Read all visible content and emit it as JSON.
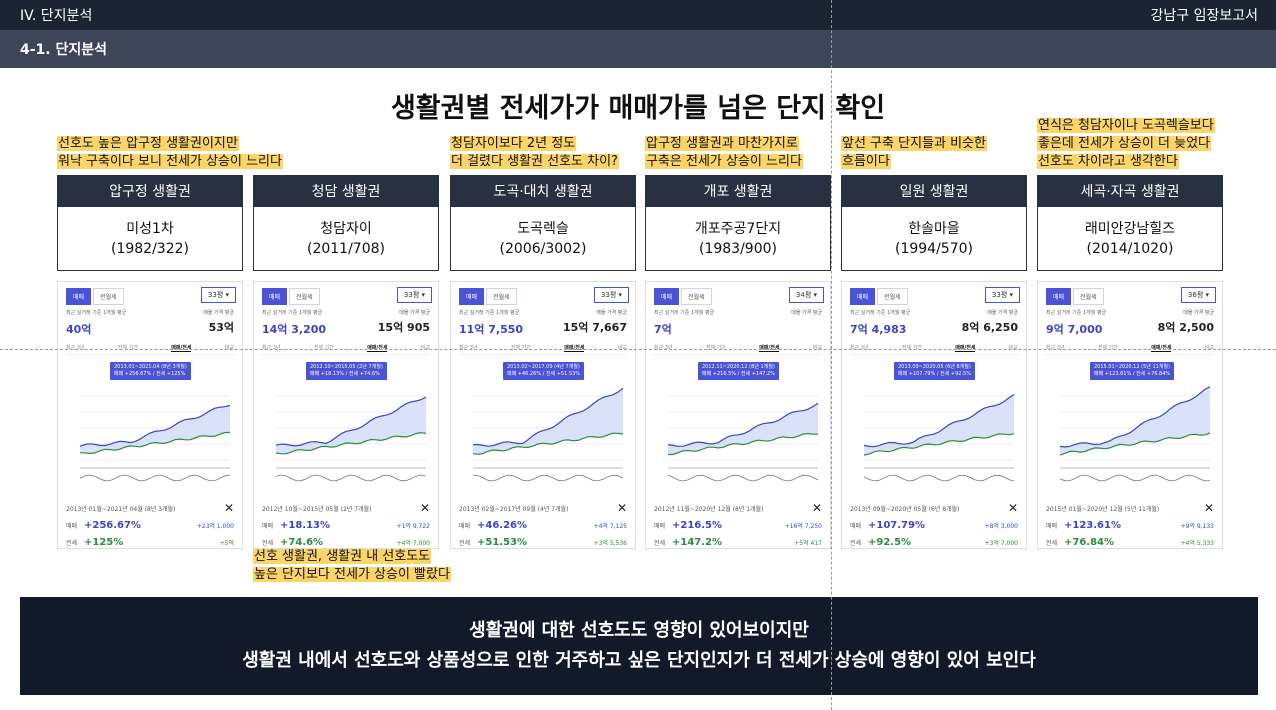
{
  "header": {
    "section": "IV. 단지분석",
    "report": "강남구 임장보고서",
    "subsection": "4-1. 단지분석"
  },
  "title": "생활권별 전세가가 매매가를 넘은 단지 확인",
  "notes": {
    "apgujeong": [
      "선호도 높은 압구정 생활권이지만",
      "워낙 구축이다 보니 전세가 상승이 느리다"
    ],
    "cheongdam": [
      "청담자이보다 2년 정도",
      "더 걸렸다 생활권 선호도 차이?"
    ],
    "gaepo": [
      "압구정 생활권과 마찬가지로",
      "구축은 전세가 상승이 느리다"
    ],
    "irwon": [
      "앞선 구축 단지들과 비슷한",
      "흐름이다"
    ],
    "segok": [
      "연식은 청담자이나 도곡렉슬보다",
      "좋은데 전세가 상승이 더 늦었다",
      "선호도 차이라고 생각한다"
    ],
    "below": [
      "선호 생활권, 생활권 내 선호도도",
      "높은 단지보다 전세가 상승이 빨랐다"
    ]
  },
  "card_labels": {
    "tab_sale": "매매",
    "tab_jeonse": "전월세",
    "recent_avg": "최근 실거래 기준 1개월 평균",
    "ask_avg": "매물 가격 평균",
    "sub1": "최근 3년",
    "sub2": "전체 기간",
    "sub3": "매매/전세",
    "sub4": "비교",
    "row_sale": "매매",
    "row_jeonse": "전세"
  },
  "complexes": [
    {
      "area": "압구정 생활권",
      "name": "미성1차",
      "year": "(1982/322)",
      "size": "33평 ▾",
      "jeonse": "40억",
      "maemae": "53억",
      "tip1": "2013.01~2021.04 (8년 3개월)",
      "tip2": "매매 +256.67% / 전세 +125%",
      "period": "2013년 01월~2021년 04월 (8년 3개월)",
      "sale_pct": "+256.67%",
      "sale_diff": "+23억 1,000",
      "jeonse_pct": "+125%",
      "jeonse_diff": "+5억"
    },
    {
      "area": "청담 생활권",
      "name": "청담자이",
      "year": "(2011/708)",
      "size": "33평 ▾",
      "jeonse": "14억 3,200",
      "maemae": "15억 905",
      "tip1": "2012.10~2015.05 (2년 7개월)",
      "tip2": "매매 +18.13% / 전세 +74.6%",
      "period": "2012년 10월~2015년 05월 (2년 7개월)",
      "sale_pct": "+18.13%",
      "sale_diff": "+1억 9,722",
      "jeonse_pct": "+74.6%",
      "jeonse_diff": "+4억 7,000"
    },
    {
      "area": "도곡·대치 생활권",
      "name": "도곡렉슬",
      "year": "(2006/3002)",
      "size": "33평 ▾",
      "jeonse": "11억 7,550",
      "maemae": "15억 7,667",
      "tip1": "2013.02~2017.09 (4년 7개월)",
      "tip2": "매매 +46.26% / 전세 +51.53%",
      "period": "2013년 02월~2017년 09월 (4년 7개월)",
      "sale_pct": "+46.26%",
      "sale_diff": "+4억 7,125",
      "jeonse_pct": "+51.53%",
      "jeonse_diff": "+3억 5,536"
    },
    {
      "area": "개포 생활권",
      "name": "개포주공7단지",
      "year": "(1983/900)",
      "size": "34평 ▾",
      "jeonse": "7억",
      "maemae": "",
      "tip1": "2012.11~2020.12 (8년 1개월)",
      "tip2": "매매 +216.5% / 전세 +147.2%",
      "period": "2012년 11월~2020년 12월 (8년 1개월)",
      "sale_pct": "+216.5%",
      "sale_diff": "+16억 7,250",
      "jeonse_pct": "+147.2%",
      "jeonse_diff": "+5억 417"
    },
    {
      "area": "일원 생활권",
      "name": "한솔마을",
      "year": "(1994/570)",
      "size": "33평 ▾",
      "jeonse": "7억 4,983",
      "maemae": "8억 6,250",
      "tip1": "2013.09~2020.05 (6년 8개월)",
      "tip2": "매매 +107.79% / 전세 +92.5%",
      "period": "2013년 09월~2020년 05월 (6년 8개월)",
      "sale_pct": "+107.79%",
      "sale_diff": "+8억 3,000",
      "jeonse_pct": "+92.5%",
      "jeonse_diff": "+3억 7,000"
    },
    {
      "area": "세곡·자곡 생활권",
      "name": "래미안강남힐즈",
      "year": "(2014/1020)",
      "size": "36평 ▾",
      "jeonse": "9억 7,000",
      "maemae": "8억 2,500",
      "tip1": "2015.01~2020.12 (5년 11개월)",
      "tip2": "매매 +123.61% / 전세 +76.84%",
      "period": "2015년 01월~2020년 12월 (5년 11개월)",
      "sale_pct": "+123.61%",
      "sale_diff": "+9억 9,133",
      "jeonse_pct": "+76.84%",
      "jeonse_diff": "+4억 5,333"
    }
  ],
  "conclusion": [
    "생활권에 대한 선호도도 영향이 있어보이지만",
    "생활권 내에서 선호도와 상품성으로 인한 거주하고 싶은 단지인지가 더 전세가 상승에 영향이 있어 보인다"
  ],
  "colors": {
    "sale": "#3c44c9",
    "jeonse": "#2e8b3c",
    "highlight": "#fbd567",
    "dark": "#1c2434"
  }
}
